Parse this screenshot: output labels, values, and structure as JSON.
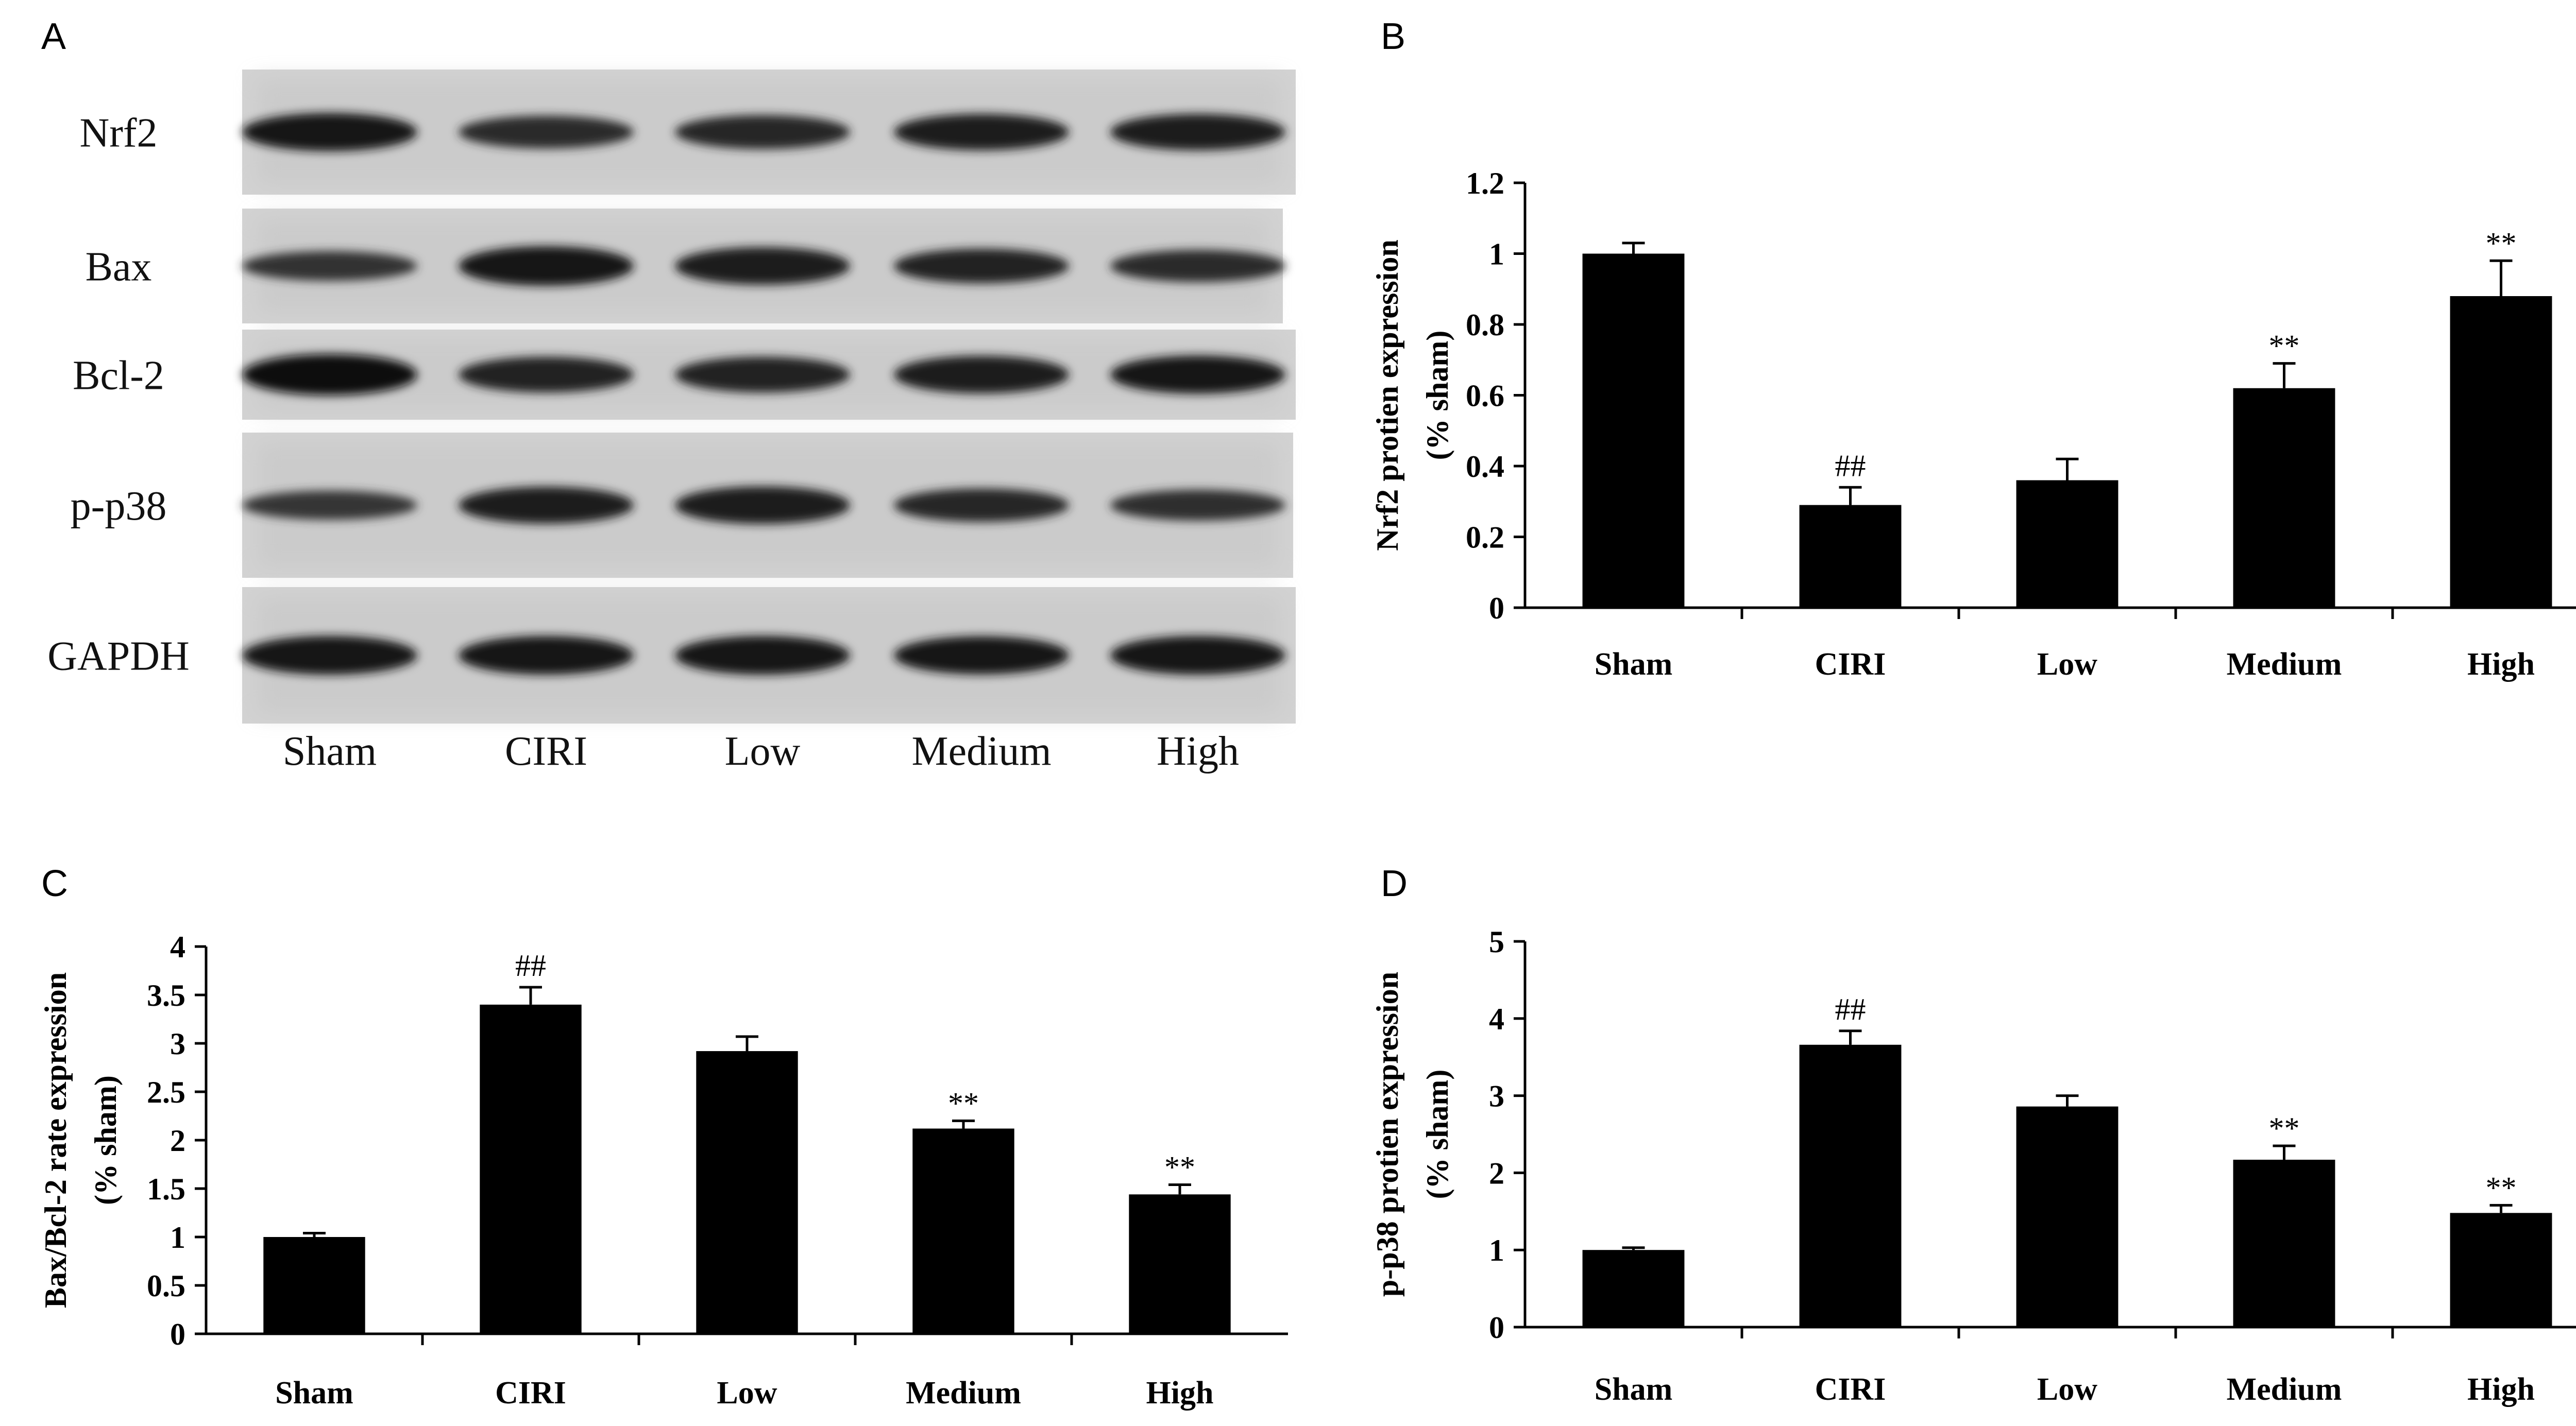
{
  "panel_a": {
    "letter": "A",
    "rows": [
      "Nrf2",
      "Bax",
      "Bcl-2",
      "p-p38",
      "GAPDH"
    ],
    "lanes": [
      "Sham",
      "CIRI",
      "Low",
      "Medium",
      "High"
    ],
    "band_intensity": [
      [
        0.9,
        0.72,
        0.76,
        0.84,
        0.84
      ],
      [
        0.62,
        0.95,
        0.88,
        0.78,
        0.7
      ],
      [
        1.0,
        0.82,
        0.82,
        0.88,
        0.9
      ],
      [
        0.6,
        0.86,
        0.88,
        0.74,
        0.66
      ],
      [
        0.92,
        0.92,
        0.92,
        0.9,
        0.92
      ]
    ]
  },
  "chart_data": [
    {
      "letter": "B",
      "type": "bar",
      "categories": [
        "Sham",
        "CIRI",
        "Low",
        "Medium",
        "High"
      ],
      "values": [
        1.0,
        0.29,
        0.36,
        0.62,
        0.88
      ],
      "errors": [
        0.03,
        0.05,
        0.06,
        0.07,
        0.1
      ],
      "annotations": [
        "",
        "##",
        "",
        "**",
        "**"
      ],
      "ylabel_line1": "Nrf2 protien expression",
      "ylabel_line2": "(% sham)",
      "ylim": [
        0,
        1.2
      ],
      "yticks": [
        0,
        0.2,
        0.4,
        0.6,
        0.8,
        1,
        1.2
      ],
      "ytick_labels": [
        "0",
        "0.2",
        "0.4",
        "0.6",
        "0.8",
        "1",
        "1.2"
      ],
      "grid": false,
      "bar_color": "#000000"
    },
    {
      "letter": "C",
      "type": "bar",
      "categories": [
        "Sham",
        "CIRI",
        "Low",
        "Medium",
        "High"
      ],
      "values": [
        1.0,
        3.4,
        2.92,
        2.12,
        1.44
      ],
      "errors": [
        0.04,
        0.18,
        0.15,
        0.08,
        0.1
      ],
      "annotations": [
        "",
        "##",
        "",
        "**",
        "**"
      ],
      "ylabel_line1": "Bax/Bcl-2 rate expression",
      "ylabel_line2": "(% sham)",
      "ylim": [
        0,
        4
      ],
      "yticks": [
        0,
        0.5,
        1,
        1.5,
        2,
        2.5,
        3,
        3.5,
        4
      ],
      "ytick_labels": [
        "0",
        "0.5",
        "1",
        "1.5",
        "2",
        "2.5",
        "3",
        "3.5",
        "4"
      ],
      "grid": false,
      "bar_color": "#000000"
    },
    {
      "letter": "D",
      "type": "bar",
      "categories": [
        "Sham",
        "CIRI",
        "Low",
        "Medium",
        "High"
      ],
      "values": [
        1.0,
        3.66,
        2.86,
        2.17,
        1.48
      ],
      "errors": [
        0.03,
        0.18,
        0.14,
        0.18,
        0.1
      ],
      "annotations": [
        "",
        "##",
        "",
        "**",
        "**"
      ],
      "ylabel_line1": "p-p38 protien expression",
      "ylabel_line2": "(% sham)",
      "ylim": [
        0,
        5
      ],
      "yticks": [
        0,
        1,
        2,
        3,
        4,
        5
      ],
      "ytick_labels": [
        "0",
        "1",
        "2",
        "3",
        "4",
        "5"
      ],
      "grid": false,
      "bar_color": "#000000"
    }
  ]
}
